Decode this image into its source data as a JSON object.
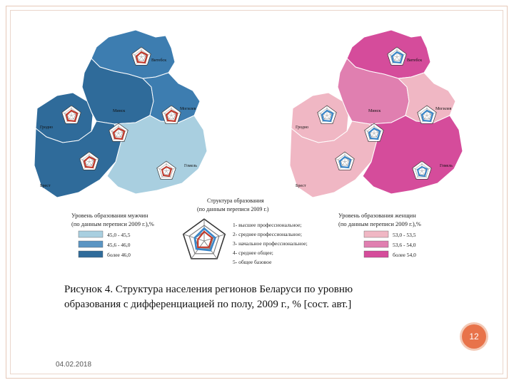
{
  "figure": {
    "legend_male": {
      "title_line1": "Уровень образования мужчин",
      "title_line2": "(по данным переписи 2009 г.),%",
      "items": [
        {
          "label": "45,0 - 45,5",
          "color": "#a9cfe0"
        },
        {
          "label": "45,6 - 46,0",
          "color": "#5b95c3"
        },
        {
          "label": "более 46,0",
          "color": "#2f6b9a"
        }
      ]
    },
    "legend_female": {
      "title_line1": "Уровень образования женщин",
      "title_line2": "(по данным переписи 2009 г.),%",
      "items": [
        {
          "label": "53,0 - 53,5",
          "color": "#f0b7c4"
        },
        {
          "label": "53,6 - 54,0",
          "color": "#e07fb0"
        },
        {
          "label": "более 54,0",
          "color": "#d54c9b"
        }
      ]
    },
    "structure_legend": {
      "title_line1": "Структура образования",
      "title_line2": "(по данным переписи 2009 г.)",
      "items": [
        "1- высшее профессиональное;",
        "2- среднее профессиональное;",
        "3- начальное профессиональное;",
        "4- среднее общее;",
        "5- общее базовое"
      ]
    },
    "cities_male": [
      "Витебск",
      "Минск",
      "Гродно",
      "Могилев",
      "Брест",
      "Гомель"
    ],
    "cities_female": [
      "Витебск",
      "Минск",
      "Гродно",
      "Могилев",
      "Брест",
      "Гомель"
    ]
  },
  "caption_line1": "Рисунок 4. Структура населения регионов Беларуси по уровню",
  "caption_line2": "образования с дифференциацией по полу, 2009 г., % [сост. авт.]",
  "page_number": "12",
  "date": "04.02.2018"
}
